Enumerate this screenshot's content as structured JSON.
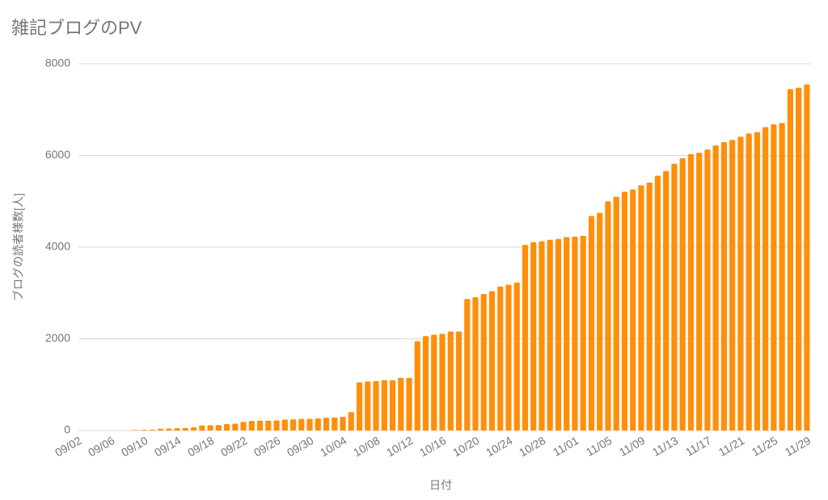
{
  "chart_data": {
    "type": "bar",
    "title": "雑記ブログのPV",
    "x_label": "日付",
    "y_label": "ブログの読者様数[人]",
    "categories": [
      "09/02",
      null,
      null,
      null,
      "09/06",
      null,
      null,
      null,
      "09/10",
      null,
      null,
      null,
      "09/14",
      null,
      null,
      null,
      "09/18",
      null,
      null,
      null,
      "09/22",
      null,
      null,
      null,
      "09/26",
      null,
      null,
      null,
      "09/30",
      null,
      null,
      null,
      "10/04",
      null,
      null,
      null,
      "10/08",
      null,
      null,
      null,
      "10/12",
      null,
      null,
      null,
      "10/16",
      null,
      null,
      null,
      "10/20",
      null,
      null,
      null,
      "10/24",
      null,
      null,
      null,
      "10/28",
      null,
      null,
      null,
      "11/01",
      null,
      null,
      null,
      "11/05",
      null,
      null,
      null,
      "11/09",
      null,
      null,
      null,
      "11/13",
      null,
      null,
      null,
      "11/17",
      null,
      null,
      null,
      "11/21",
      null,
      null,
      null,
      "11/25",
      null,
      null,
      null,
      "11/29"
    ],
    "values": [
      0,
      0,
      0,
      0,
      0,
      0,
      0,
      10,
      15,
      20,
      40,
      45,
      50,
      55,
      70,
      110,
      115,
      120,
      140,
      150,
      190,
      210,
      215,
      215,
      220,
      240,
      245,
      255,
      255,
      265,
      280,
      285,
      300,
      400,
      1050,
      1070,
      1080,
      1100,
      1100,
      1150,
      1150,
      1950,
      2060,
      2090,
      2110,
      2160,
      2160,
      2870,
      2910,
      2980,
      3040,
      3140,
      3180,
      3230,
      4050,
      4110,
      4130,
      4160,
      4180,
      4220,
      4230,
      4250,
      4680,
      4750,
      5000,
      5100,
      5210,
      5260,
      5350,
      5410,
      5560,
      5660,
      5820,
      5940,
      6030,
      6060,
      6130,
      6220,
      6290,
      6340,
      6410,
      6480,
      6510,
      6620,
      6680,
      6710,
      7450,
      7480,
      7550
    ],
    "color": "#ff8f0a",
    "ylim": [
      0,
      8000
    ],
    "yticks": [
      0,
      2000,
      4000,
      6000,
      8000
    ],
    "grid": true
  }
}
